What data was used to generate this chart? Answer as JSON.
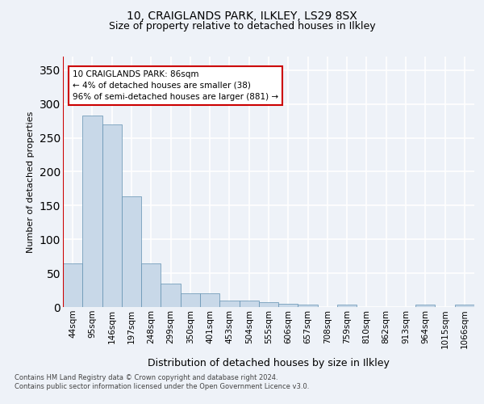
{
  "title": "10, CRAIGLANDS PARK, ILKLEY, LS29 8SX",
  "subtitle": "Size of property relative to detached houses in Ilkley",
  "xlabel": "Distribution of detached houses by size in Ilkley",
  "ylabel": "Number of detached properties",
  "footer_line1": "Contains HM Land Registry data © Crown copyright and database right 2024.",
  "footer_line2": "Contains public sector information licensed under the Open Government Licence v3.0.",
  "annotation_line1": "10 CRAIGLANDS PARK: 86sqm",
  "annotation_line2": "← 4% of detached houses are smaller (38)",
  "annotation_line3": "96% of semi-detached houses are larger (881) →",
  "bar_color": "#c8d8e8",
  "bar_edge_color": "#6090b0",
  "redline_color": "#cc0000",
  "annotation_box_edge": "#cc0000",
  "categories": [
    "44sqm",
    "95sqm",
    "146sqm",
    "197sqm",
    "248sqm",
    "299sqm",
    "350sqm",
    "401sqm",
    "453sqm",
    "504sqm",
    "555sqm",
    "606sqm",
    "657sqm",
    "708sqm",
    "759sqm",
    "810sqm",
    "862sqm",
    "913sqm",
    "964sqm",
    "1015sqm",
    "1066sqm"
  ],
  "values": [
    65,
    283,
    270,
    163,
    65,
    35,
    20,
    20,
    9,
    9,
    7,
    5,
    4,
    0,
    3,
    0,
    0,
    0,
    3,
    0,
    3
  ],
  "ylim": [
    0,
    370
  ],
  "yticks": [
    0,
    50,
    100,
    150,
    200,
    250,
    300,
    350
  ],
  "background_color": "#eef2f8",
  "plot_bg_color": "#eef2f8",
  "grid_color": "#ffffff",
  "title_fontsize": 10,
  "subtitle_fontsize": 9,
  "tick_fontsize": 7.5,
  "ylabel_fontsize": 8,
  "xlabel_fontsize": 9
}
